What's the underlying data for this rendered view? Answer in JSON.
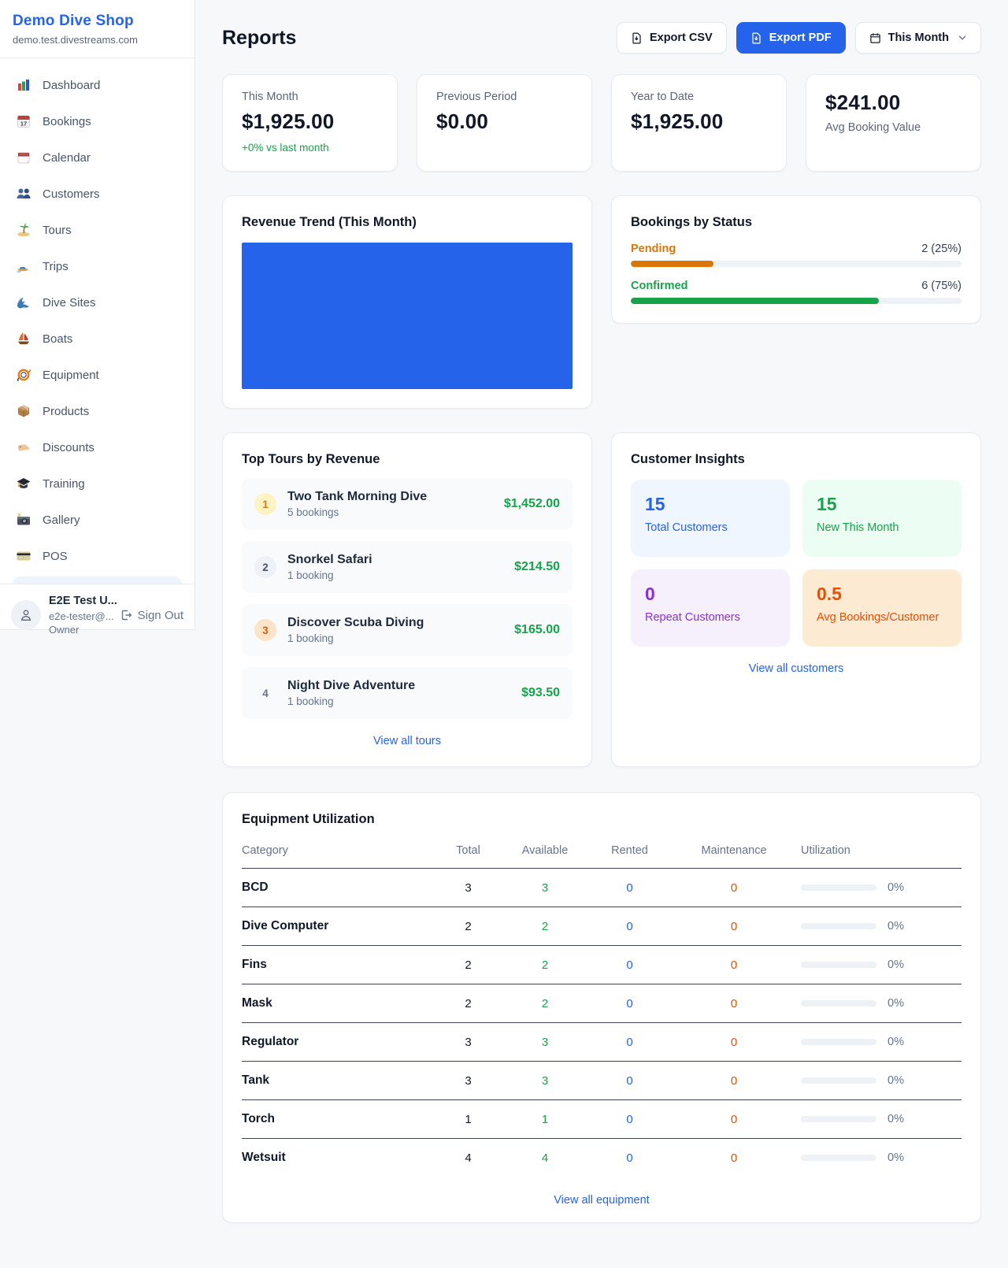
{
  "sidebar": {
    "shop_name": "Demo Dive Shop",
    "shop_domain": "demo.test.divestreams.com",
    "nav": [
      {
        "icon": "bar-chart-icon",
        "label": "Dashboard"
      },
      {
        "icon": "calendar-date-icon",
        "label": "Bookings"
      },
      {
        "icon": "tearoff-calendar-icon",
        "label": "Calendar"
      },
      {
        "icon": "people-icon",
        "label": "Customers"
      },
      {
        "icon": "island-icon",
        "label": "Tours"
      },
      {
        "icon": "speedboat-icon",
        "label": "Trips"
      },
      {
        "icon": "wave-icon",
        "label": "Dive Sites"
      },
      {
        "icon": "sailboat-icon",
        "label": "Boats"
      },
      {
        "icon": "dive-mask-icon",
        "label": "Equipment"
      },
      {
        "icon": "package-icon",
        "label": "Products"
      },
      {
        "icon": "tag-icon",
        "label": "Discounts"
      },
      {
        "icon": "grad-cap-icon",
        "label": "Training"
      },
      {
        "icon": "camera-icon",
        "label": "Gallery"
      },
      {
        "icon": "credit-card-icon",
        "label": "POS"
      }
    ],
    "user": {
      "name": "E2E Test U...",
      "email": "e2e-tester@...",
      "role": "Owner",
      "sign_out": "Sign Out"
    }
  },
  "header": {
    "title": "Reports",
    "export_csv": "Export CSV",
    "export_pdf": "Export PDF",
    "period": "This Month"
  },
  "stats": {
    "this_month": {
      "label": "This Month",
      "value": "$1,925.00",
      "delta": "+0% vs last month"
    },
    "previous_period": {
      "label": "Previous Period",
      "value": "$0.00"
    },
    "year_to_date": {
      "label": "Year to Date",
      "value": "$1,925.00"
    },
    "avg_booking": {
      "value": "$241.00",
      "label": "Avg Booking Value"
    }
  },
  "revenue_trend": {
    "title": "Revenue Trend (This Month)",
    "chart_color": "#2563eb"
  },
  "status_card": {
    "title": "Bookings by Status",
    "rows": [
      {
        "label": "Pending",
        "count": "2 (25%)",
        "percent": 25,
        "color": "#d97706"
      },
      {
        "label": "Confirmed",
        "count": "6 (75%)",
        "percent": 75,
        "color": "#16a34a"
      }
    ]
  },
  "top_tours": {
    "title": "Top Tours by Revenue",
    "view_all": "View all tours",
    "items": [
      {
        "rank": "1",
        "name": "Two Tank Morning Dive",
        "bookings": "5 bookings",
        "amount": "$1,452.00"
      },
      {
        "rank": "2",
        "name": "Snorkel Safari",
        "bookings": "1 booking",
        "amount": "$214.50"
      },
      {
        "rank": "3",
        "name": "Discover Scuba Diving",
        "bookings": "1 booking",
        "amount": "$165.00"
      },
      {
        "rank": "4",
        "name": "Night Dive Adventure",
        "bookings": "1 booking",
        "amount": "$93.50"
      }
    ]
  },
  "insights": {
    "title": "Customer Insights",
    "view_all": "View all customers",
    "tiles": [
      {
        "value": "15",
        "label": "Total Customers"
      },
      {
        "value": "15",
        "label": "New This Month"
      },
      {
        "value": "0",
        "label": "Repeat Customers"
      },
      {
        "value": "0.5",
        "label": "Avg Bookings/Customer"
      }
    ]
  },
  "equipment": {
    "title": "Equipment Utilization",
    "view_all": "View all equipment",
    "columns": [
      "Category",
      "Total",
      "Available",
      "Rented",
      "Maintenance",
      "Utilization"
    ],
    "rows": [
      {
        "category": "BCD",
        "total": "3",
        "available": "3",
        "rented": "0",
        "maintenance": "0",
        "utilization": "0%",
        "percent": 0
      },
      {
        "category": "Dive Computer",
        "total": "2",
        "available": "2",
        "rented": "0",
        "maintenance": "0",
        "utilization": "0%",
        "percent": 0
      },
      {
        "category": "Fins",
        "total": "2",
        "available": "2",
        "rented": "0",
        "maintenance": "0",
        "utilization": "0%",
        "percent": 0
      },
      {
        "category": "Mask",
        "total": "2",
        "available": "2",
        "rented": "0",
        "maintenance": "0",
        "utilization": "0%",
        "percent": 0
      },
      {
        "category": "Regulator",
        "total": "3",
        "available": "3",
        "rented": "0",
        "maintenance": "0",
        "utilization": "0%",
        "percent": 0
      },
      {
        "category": "Tank",
        "total": "3",
        "available": "3",
        "rented": "0",
        "maintenance": "0",
        "utilization": "0%",
        "percent": 0
      },
      {
        "category": "Torch",
        "total": "1",
        "available": "1",
        "rented": "0",
        "maintenance": "0",
        "utilization": "0%",
        "percent": 0
      },
      {
        "category": "Wetsuit",
        "total": "4",
        "available": "4",
        "rented": "0",
        "maintenance": "0",
        "utilization": "0%",
        "percent": 0
      }
    ]
  }
}
